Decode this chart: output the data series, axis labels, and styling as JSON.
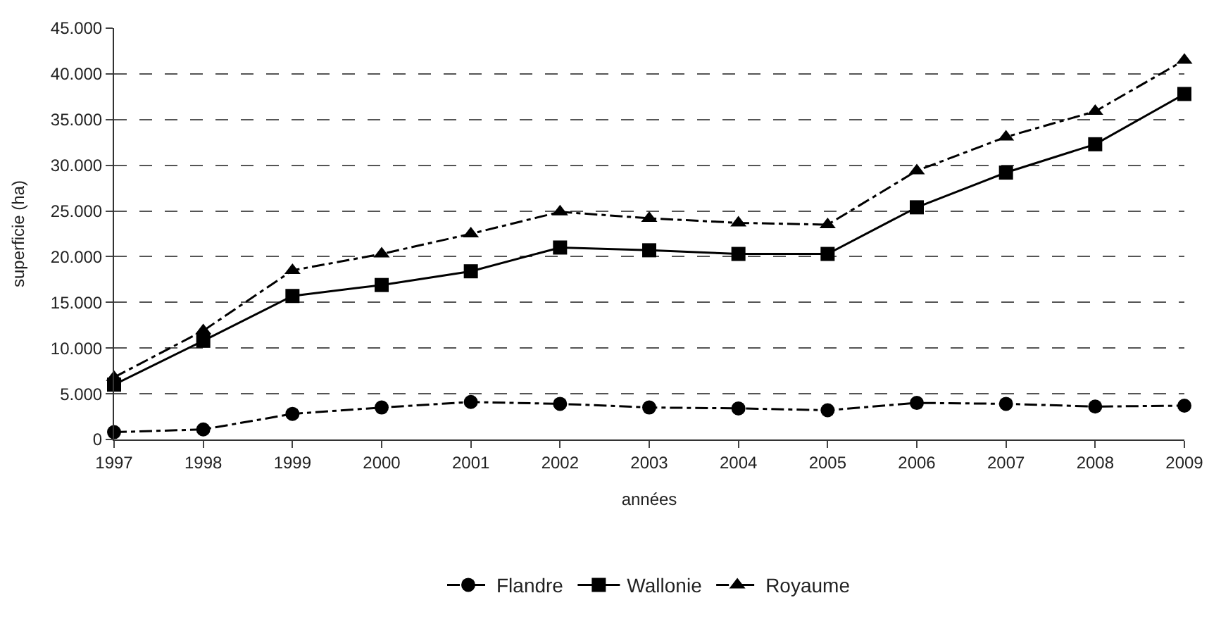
{
  "chart_data": {
    "type": "line",
    "xlabel": "années",
    "ylabel": "superficie (ha)",
    "x": [
      1997,
      1998,
      1999,
      2000,
      2001,
      2002,
      2003,
      2004,
      2005,
      2006,
      2007,
      2008,
      2009
    ],
    "series": [
      {
        "name": "Flandre",
        "color": "#000000",
        "marker": "circle",
        "line_style": "dashed",
        "values": [
          800,
          1100,
          2800,
          3500,
          4100,
          3900,
          3500,
          3400,
          3200,
          4000,
          3900,
          3600,
          3700
        ]
      },
      {
        "name": "Wallonie",
        "color": "#000000",
        "marker": "square",
        "line_style": "solid",
        "values": [
          6000,
          10800,
          15700,
          16900,
          18400,
          21000,
          20700,
          20300,
          20300,
          25400,
          29200,
          32300,
          37800
        ]
      },
      {
        "name": "Royaume",
        "color": "#000000",
        "marker": "triangle",
        "line_style": "dashed",
        "values": [
          6800,
          11900,
          18500,
          20300,
          22500,
          24900,
          24200,
          23700,
          23500,
          29400,
          33100,
          35900,
          41500
        ]
      }
    ],
    "xlim": [
      1997,
      2009
    ],
    "xticks": [
      1997,
      1998,
      1999,
      2000,
      2001,
      2002,
      2003,
      2004,
      2005,
      2006,
      2007,
      2008,
      2009
    ],
    "ylim": [
      0,
      45000
    ],
    "yticks": [
      0,
      {
        "value": 5000,
        "label": "5.000"
      },
      {
        "value": 10000,
        "label": "10.000"
      },
      {
        "value": 15000,
        "label": "15.000"
      },
      {
        "value": 20000,
        "label": "20.000"
      },
      {
        "value": 25000,
        "label": "25.000"
      },
      {
        "value": 30000,
        "label": "30.000"
      },
      {
        "value": 35000,
        "label": "35.000"
      },
      {
        "value": 40000,
        "label": "40.000"
      },
      {
        "value": 45000,
        "label": "45.000"
      }
    ],
    "grid": "y",
    "legend": "bottom"
  }
}
